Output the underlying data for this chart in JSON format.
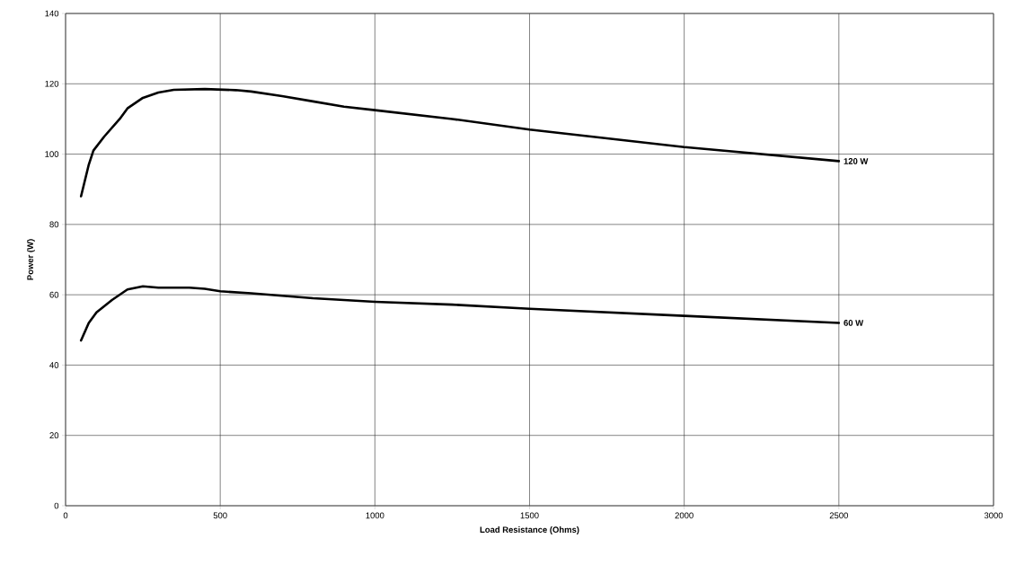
{
  "chart_data": {
    "type": "line",
    "xlabel": "Load Resistance (Ohms)",
    "ylabel": "Power (W)",
    "xlim": [
      0,
      3000
    ],
    "xticks": [
      0,
      500,
      1000,
      1500,
      2000,
      2500,
      3000
    ],
    "ylim": [
      0,
      140
    ],
    "yticks": [
      0,
      20,
      40,
      60,
      80,
      100,
      120,
      140
    ],
    "grid": true,
    "legend": false,
    "marker": "none",
    "line_style": "solid",
    "series": [
      {
        "name": "120 W",
        "color": "#000000",
        "x": [
          50,
          75,
          90,
          125,
          175,
          200,
          250,
          300,
          350,
          450,
          550,
          600,
          700,
          800,
          900,
          1000,
          1250,
          1500,
          1750,
          2000,
          2250,
          2500
        ],
        "values": [
          88,
          97,
          101,
          105,
          110,
          113,
          116,
          117.5,
          118.3,
          118.5,
          118.2,
          117.8,
          116.5,
          115,
          113.5,
          112.5,
          110,
          107,
          104.5,
          102,
          100,
          98
        ]
      },
      {
        "name": "60 W",
        "color": "#000000",
        "x": [
          50,
          75,
          100,
          150,
          200,
          250,
          300,
          400,
          450,
          500,
          600,
          800,
          1000,
          1250,
          1500,
          2000,
          2500
        ],
        "values": [
          47,
          52,
          55,
          58.5,
          61.5,
          62.4,
          62,
          62,
          61.7,
          61,
          60.4,
          59,
          58,
          57.2,
          56,
          54,
          52
        ]
      }
    ]
  }
}
